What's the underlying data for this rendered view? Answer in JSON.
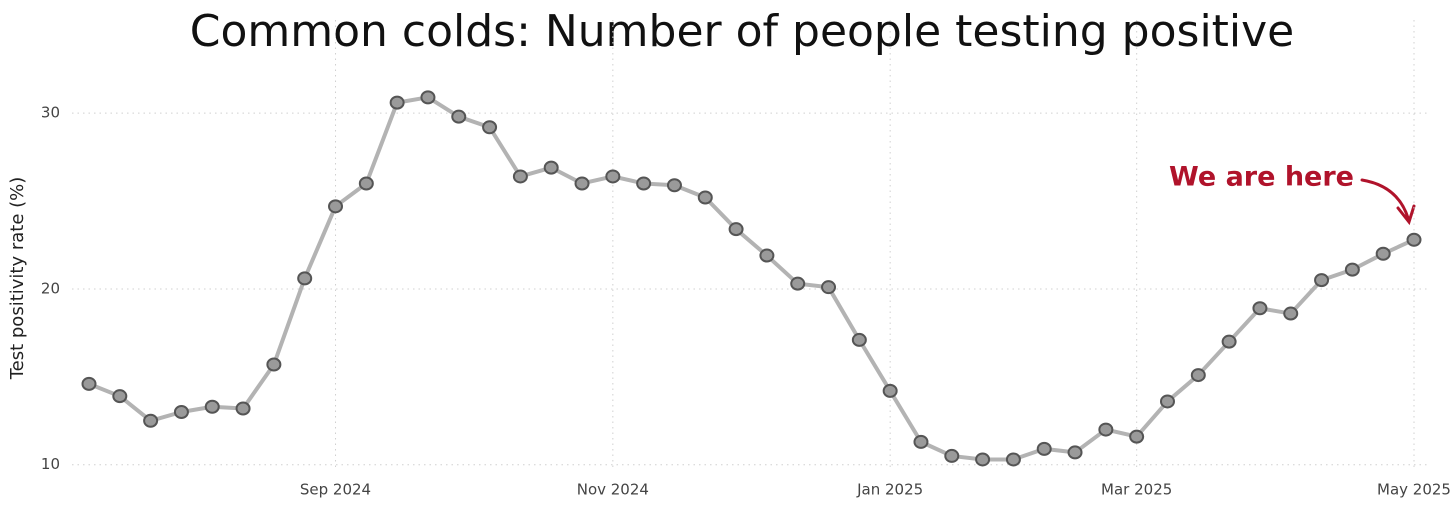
{
  "chart_data": {
    "type": "line",
    "title": "Common colds: Number of people testing positive",
    "y_label": "Test positivity rate (%)",
    "annotation": "We are here",
    "categories": [
      null,
      null,
      null,
      null,
      null,
      null,
      null,
      null,
      "Sep 2024",
      null,
      null,
      null,
      null,
      null,
      null,
      null,
      null,
      "Nov 2024",
      null,
      null,
      null,
      null,
      null,
      null,
      null,
      null,
      "Jan 2025",
      null,
      null,
      null,
      null,
      null,
      null,
      null,
      "Mar 2025",
      null,
      null,
      null,
      null,
      null,
      null,
      null,
      null,
      "May 2025"
    ],
    "series": [
      {
        "name": "Test positivity rate",
        "color": "#b3b3b3",
        "values": [
          14.6,
          13.9,
          12.5,
          13.0,
          13.3,
          13.2,
          15.7,
          20.6,
          24.7,
          26.0,
          30.6,
          30.9,
          29.8,
          29.2,
          26.4,
          26.9,
          26.0,
          26.4,
          26.0,
          25.9,
          25.2,
          23.4,
          21.9,
          20.3,
          20.1,
          17.1,
          14.2,
          11.3,
          10.5,
          10.3,
          10.3,
          10.9,
          10.7,
          12.0,
          11.6,
          13.6,
          15.1,
          17.0,
          18.9,
          18.6,
          20.5,
          21.1,
          22.0,
          22.8
        ]
      }
    ],
    "ylim": [
      9.7,
      32
    ],
    "yticks": [
      10,
      20,
      30
    ],
    "grid": true,
    "annotation_color": "#b0132b"
  }
}
